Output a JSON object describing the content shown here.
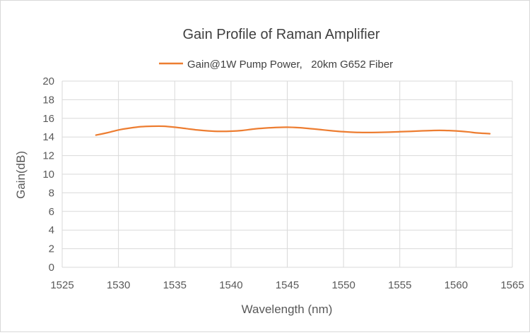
{
  "chart_data": {
    "type": "line",
    "title": "Gain Profile of Raman Amplifier",
    "xlabel": "Wavelength (nm)",
    "ylabel": "Gain(dB)",
    "xlim": [
      1525,
      1565
    ],
    "ylim": [
      0,
      20
    ],
    "xticks": [
      1525,
      1530,
      1535,
      1540,
      1545,
      1550,
      1555,
      1560,
      1565
    ],
    "yticks": [
      0,
      2,
      4,
      6,
      8,
      10,
      12,
      14,
      16,
      18,
      20
    ],
    "grid": true,
    "legend_position": "top",
    "series": [
      {
        "name": "Gain@1W Pump Power,   20km G652 Fiber",
        "color": "#ED7D31",
        "x": [
          1528,
          1529,
          1530,
          1531,
          1532,
          1533,
          1534,
          1535,
          1536,
          1537,
          1538,
          1539,
          1540,
          1541,
          1542,
          1543,
          1544,
          1545,
          1546,
          1547,
          1548,
          1549,
          1550,
          1551,
          1552,
          1553,
          1554,
          1555,
          1556,
          1557,
          1558,
          1559,
          1560,
          1561,
          1562,
          1563
        ],
        "y": [
          14.2,
          14.45,
          14.75,
          14.95,
          15.1,
          15.15,
          15.15,
          15.05,
          14.9,
          14.75,
          14.65,
          14.6,
          14.62,
          14.7,
          14.85,
          14.95,
          15.02,
          15.05,
          15.0,
          14.9,
          14.78,
          14.66,
          14.56,
          14.5,
          14.48,
          14.49,
          14.52,
          14.56,
          14.6,
          14.66,
          14.7,
          14.7,
          14.65,
          14.55,
          14.42,
          14.35
        ]
      }
    ]
  }
}
